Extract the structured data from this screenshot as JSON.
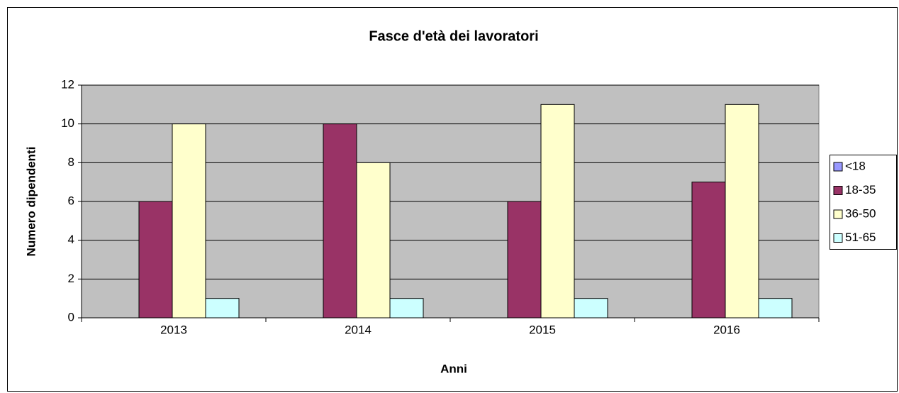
{
  "chart_data": {
    "type": "bar",
    "title": "Fasce d'età dei lavoratori",
    "xlabel": "Anni",
    "ylabel": "Numero dipendenti",
    "categories": [
      "2013",
      "2014",
      "2015",
      "2016"
    ],
    "series": [
      {
        "name": "<18",
        "color": "#9999ff",
        "values": [
          0,
          0,
          0,
          0
        ]
      },
      {
        "name": "18-35",
        "color": "#993366",
        "values": [
          6,
          10,
          6,
          7
        ]
      },
      {
        "name": "36-50",
        "color": "#ffffcc",
        "values": [
          10,
          8,
          11,
          11
        ]
      },
      {
        "name": "51-65",
        "color": "#ccffff",
        "values": [
          1,
          1,
          1,
          1
        ]
      }
    ],
    "ylim": [
      0,
      12
    ],
    "yticks": [
      0,
      2,
      4,
      6,
      8,
      10,
      12
    ],
    "grid": true,
    "legend": "right"
  }
}
